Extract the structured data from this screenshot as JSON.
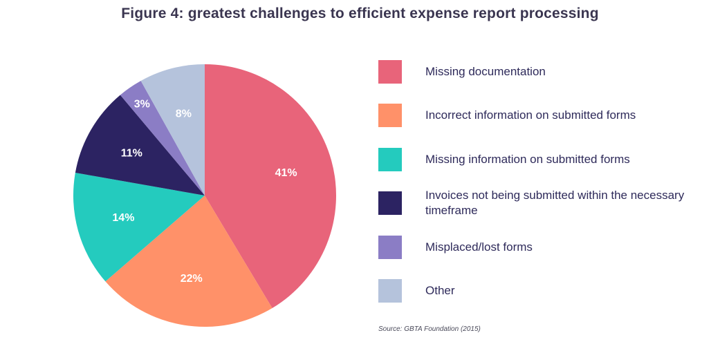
{
  "chart_data": {
    "type": "pie",
    "title": "Figure 4: greatest challenges to efficient expense report processing",
    "slices": [
      {
        "label": "Missing documentation",
        "value": 41,
        "display": "41%",
        "color": "#e8647a"
      },
      {
        "label": "Incorrect information on submitted forms",
        "value": 22,
        "display": "22%",
        "color": "#ff9169"
      },
      {
        "label": "Missing information on submitted forms",
        "value": 14,
        "display": "14%",
        "color": "#24cbbe"
      },
      {
        "label": "Invoices not being submitted within the necessary timeframe",
        "value": 11,
        "display": "11%",
        "color": "#2c2362"
      },
      {
        "label": "Misplaced/lost forms",
        "value": 3,
        "display": "3%",
        "color": "#8b7dc5"
      },
      {
        "label": "Other",
        "value": 8,
        "display": "8%",
        "color": "#b5c3dc"
      }
    ],
    "source": "Source: GBTA Foundation (2015)"
  }
}
